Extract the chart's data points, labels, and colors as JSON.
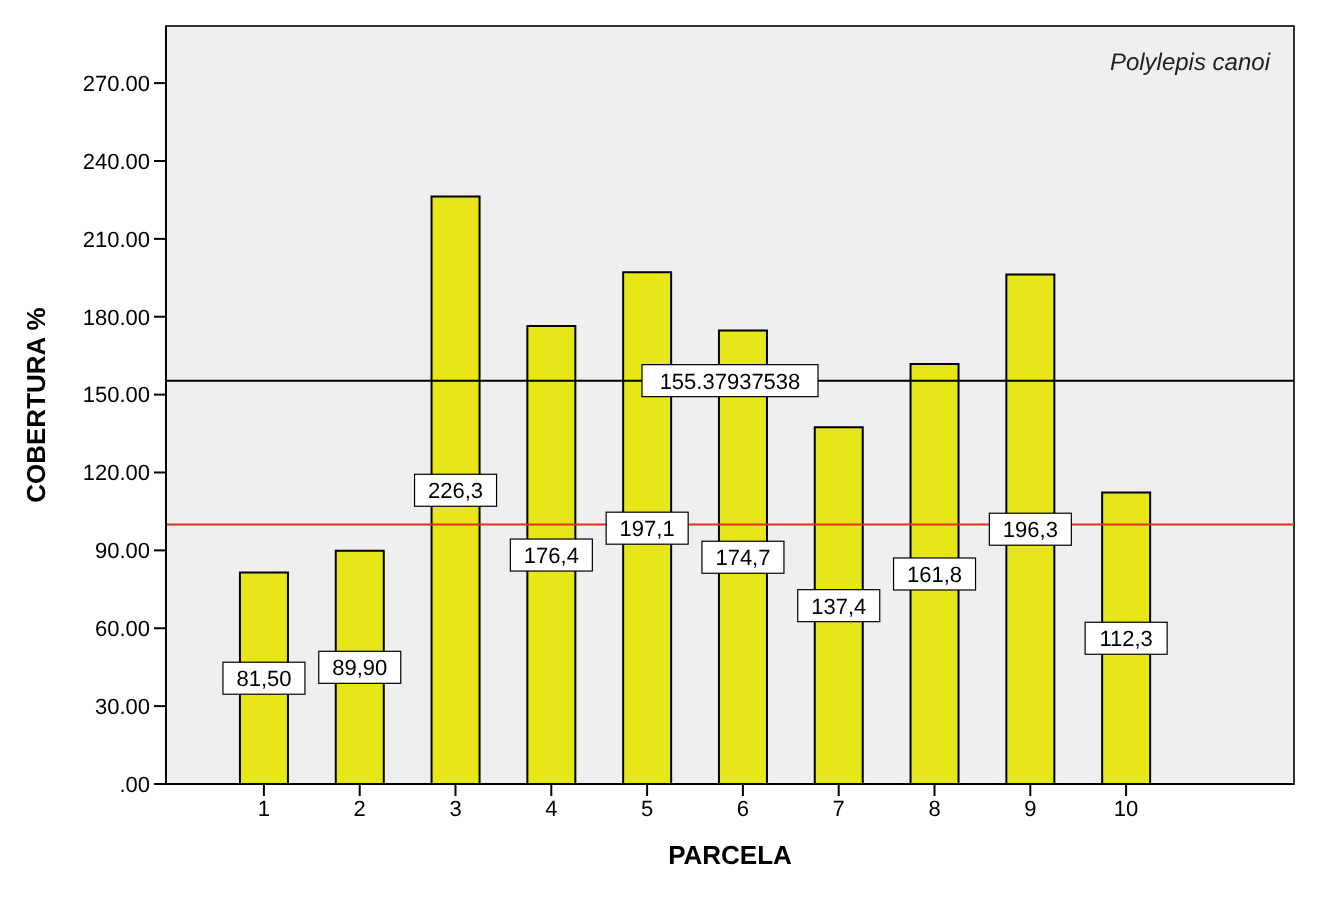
{
  "chart_data": {
    "type": "bar",
    "xlabel": "PARCELA",
    "ylabel": "COBERTURA %",
    "categories": [
      "1",
      "2",
      "3",
      "4",
      "5",
      "6",
      "7",
      "8",
      "9",
      "10"
    ],
    "values": [
      81.5,
      89.9,
      226.3,
      176.4,
      197.1,
      174.7,
      137.4,
      161.8,
      196.3,
      112.3
    ],
    "value_labels": [
      "81,50",
      "89,90",
      "226,3",
      "176,4",
      "197,1",
      "174,7",
      "137,4",
      "161,8",
      "196,3",
      "112,3"
    ],
    "color": "#e6e619",
    "ylim": [
      0,
      292
    ],
    "yticks": [
      {
        "value": 0,
        "label": ".00"
      },
      {
        "value": 30,
        "label": "30.00"
      },
      {
        "value": 60,
        "label": "60.00"
      },
      {
        "value": 90,
        "label": "90.00"
      },
      {
        "value": 120,
        "label": "120.00"
      },
      {
        "value": 150,
        "label": "150.00"
      },
      {
        "value": 180,
        "label": "180.00"
      },
      {
        "value": 210,
        "label": "210.00"
      },
      {
        "value": 240,
        "label": "240.00"
      },
      {
        "value": 270,
        "label": "270.00"
      }
    ],
    "ref_lines": [
      {
        "axis": "y",
        "value": 155.37937538,
        "label": "155.37937538",
        "color": "#000000"
      },
      {
        "axis": "y",
        "value": 100,
        "label": null,
        "color": "#e03020"
      }
    ],
    "annotations": [
      "Polylepis canoi"
    ]
  }
}
